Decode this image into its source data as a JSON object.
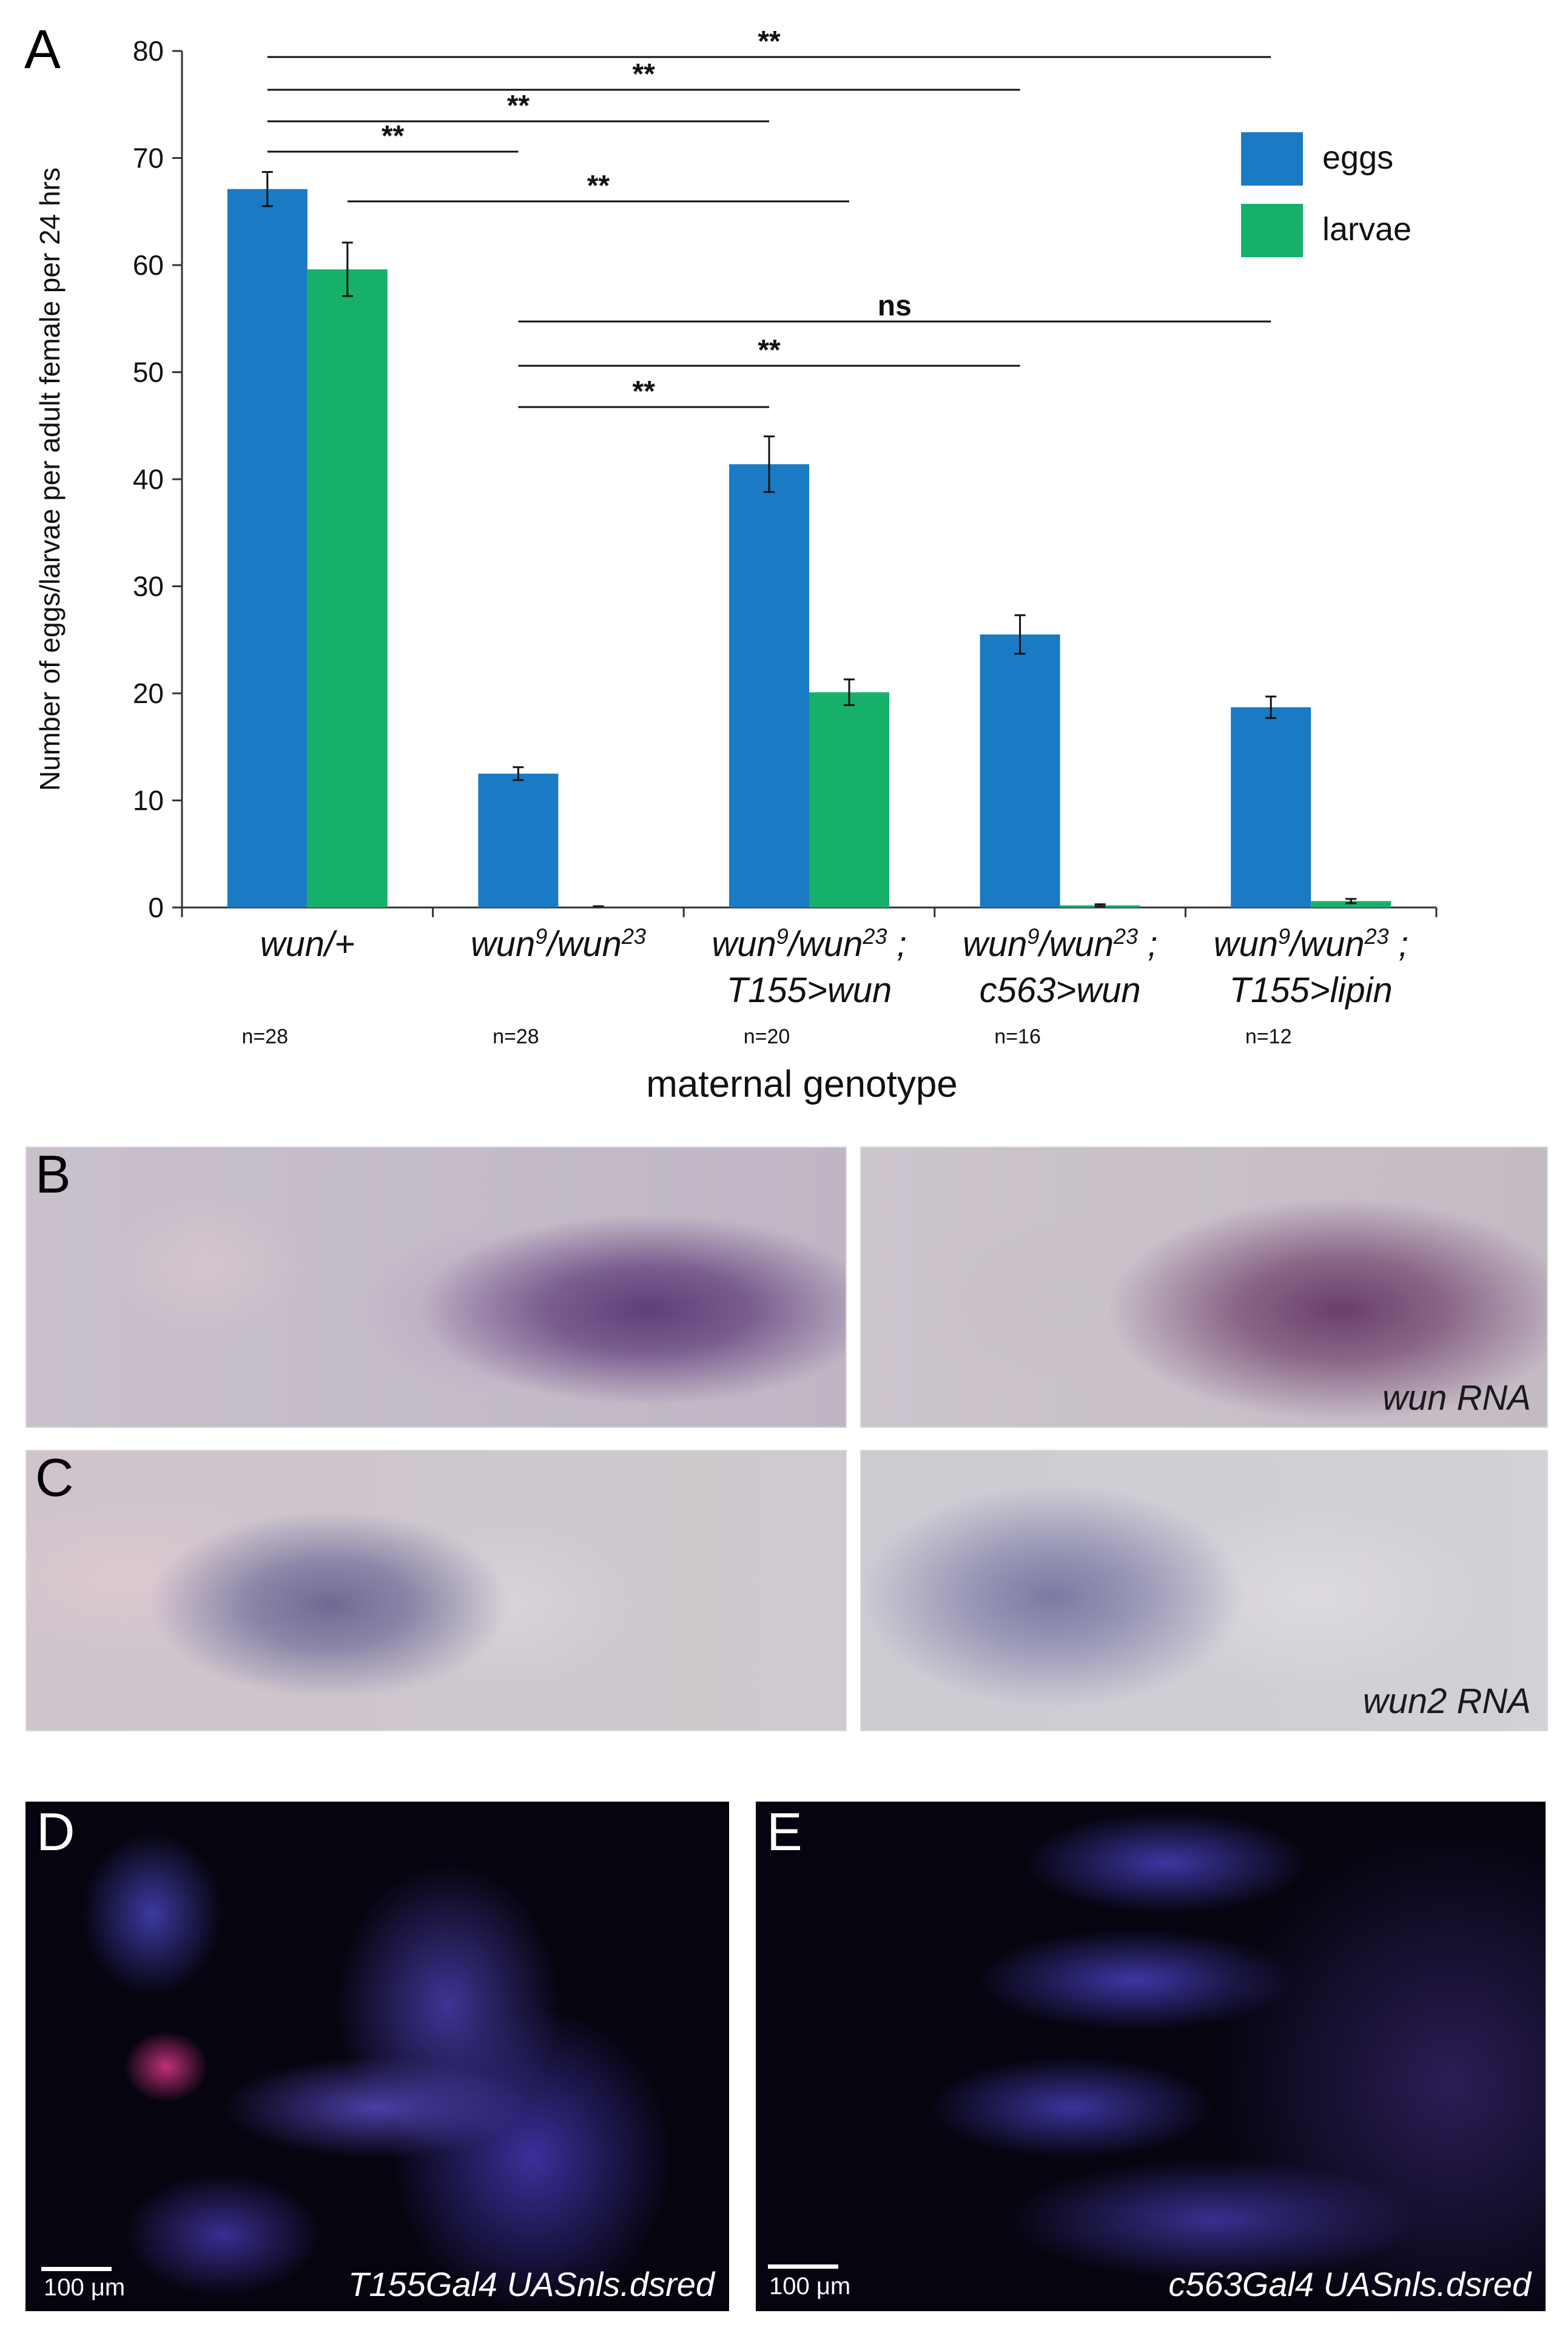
{
  "panels": {
    "a": "A",
    "b": "B",
    "c": "C",
    "d": "D",
    "e": "E"
  },
  "chart_data": {
    "type": "bar",
    "ylabel": "Number of eggs/larvae per adult female per 24 hrs",
    "xlabel": "maternal genotype",
    "ylim": [
      0,
      80
    ],
    "yticks": [
      "0",
      "10",
      "20",
      "30",
      "40",
      "50",
      "60",
      "70",
      "80"
    ],
    "categories": [
      {
        "line1": "wun/+",
        "line2": "",
        "n": "n=28"
      },
      {
        "line1": "wun9/wun23",
        "line2": "",
        "n": "n=28"
      },
      {
        "line1": "wun9/wun23 ;",
        "line2": "T155>wun",
        "n": "n=20"
      },
      {
        "line1": "wun9/wun23 ;",
        "line2": "c563>wun",
        "n": "n=16"
      },
      {
        "line1": "wun9/wun23 ;",
        "line2": "T155>lipin",
        "n": "n=12"
      }
    ],
    "series": [
      {
        "name": "eggs",
        "color": "#1a7ac4",
        "values": [
          67.1,
          12.5,
          41.4,
          25.5,
          18.7
        ],
        "errors": [
          1.6,
          0.6,
          2.6,
          1.8,
          1.0
        ]
      },
      {
        "name": "larvae",
        "color": "#17b06b",
        "values": [
          59.6,
          0.0,
          20.1,
          0.2,
          0.6
        ],
        "errors": [
          2.5,
          0.0,
          1.2,
          0.1,
          0.2
        ]
      }
    ],
    "legend_position": "top-right",
    "significance": [
      {
        "from": "eggs-0",
        "to": "eggs-4",
        "label": "**"
      },
      {
        "from": "eggs-0",
        "to": "eggs-3",
        "label": "**"
      },
      {
        "from": "eggs-0",
        "to": "eggs-2",
        "label": "**"
      },
      {
        "from": "eggs-0",
        "to": "eggs-1",
        "label": "**"
      },
      {
        "from": "larvae-0",
        "to": "larvae-2",
        "label": "**"
      },
      {
        "from": "eggs-1",
        "to": "eggs-4",
        "label": "ns"
      },
      {
        "from": "eggs-1",
        "to": "eggs-3",
        "label": "**"
      },
      {
        "from": "eggs-1",
        "to": "eggs-2",
        "label": "**"
      }
    ]
  },
  "micrographs": {
    "b_caption": "wun RNA",
    "c_caption": "wun2 RNA",
    "d_caption": "T155Gal4  UASnls.dsred",
    "e_caption": "c563Gal4  UASnls.dsred",
    "d_scale": "100 μm",
    "e_scale": "100 μm"
  }
}
